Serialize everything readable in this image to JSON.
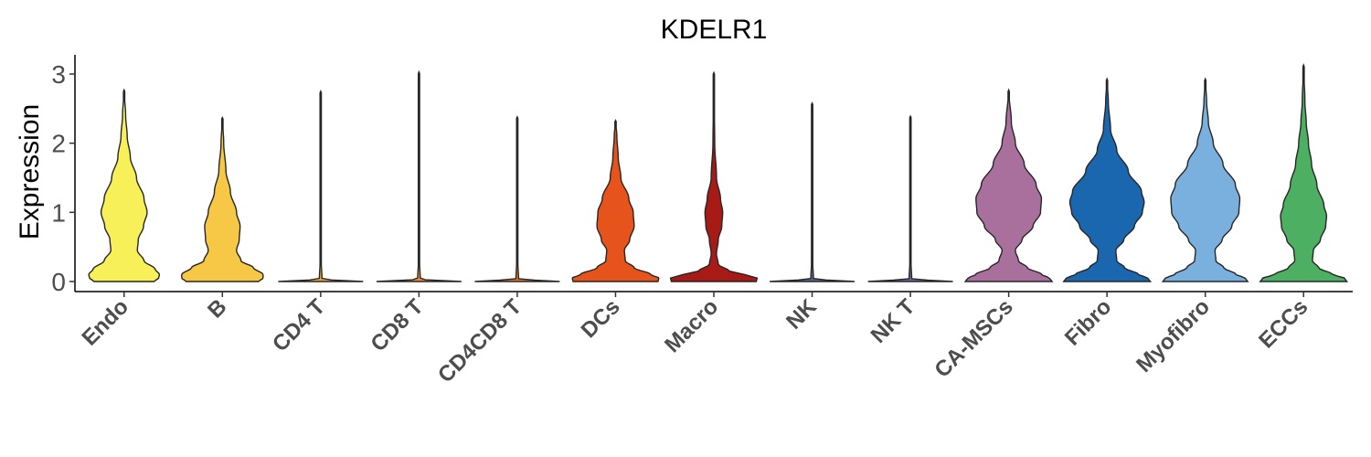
{
  "chart_data": {
    "type": "violin",
    "title": "KDELR1",
    "xlabel": "",
    "ylabel": "Expression",
    "ylim": [
      -0.15,
      3.3
    ],
    "yticks": [
      0,
      1,
      2,
      3
    ],
    "grid": false,
    "legend": "none",
    "categories": [
      "Endo",
      "B",
      "CD4 T",
      "CD8 T",
      "CD4CD8 T",
      "DCs",
      "Macro",
      "NK",
      "NK T",
      "CA-MSCs",
      "Fibro",
      "Myofibro",
      "ECCs"
    ],
    "series": [
      {
        "category": "Endo",
        "color": "#F8F058",
        "max": 2.77,
        "profile": [
          [
            0,
            0.68
          ],
          [
            0.05,
            0.78
          ],
          [
            0.1,
            0.8
          ],
          [
            0.18,
            0.7
          ],
          [
            0.3,
            0.45
          ],
          [
            0.45,
            0.3
          ],
          [
            0.6,
            0.32
          ],
          [
            0.8,
            0.44
          ],
          [
            1.0,
            0.52
          ],
          [
            1.2,
            0.45
          ],
          [
            1.5,
            0.28
          ],
          [
            1.8,
            0.14
          ],
          [
            2.1,
            0.07
          ],
          [
            2.4,
            0.035
          ],
          [
            2.77,
            0.0
          ]
        ]
      },
      {
        "category": "B",
        "color": "#F6C845",
        "max": 2.37,
        "profile": [
          [
            0,
            0.82
          ],
          [
            0.05,
            0.92
          ],
          [
            0.1,
            0.92
          ],
          [
            0.2,
            0.7
          ],
          [
            0.3,
            0.42
          ],
          [
            0.45,
            0.32
          ],
          [
            0.6,
            0.38
          ],
          [
            0.8,
            0.4
          ],
          [
            1.0,
            0.32
          ],
          [
            1.3,
            0.18
          ],
          [
            1.6,
            0.08
          ],
          [
            2.0,
            0.03
          ],
          [
            2.37,
            0.0
          ]
        ]
      },
      {
        "category": "CD4 T",
        "color": "#F0A842",
        "max": 2.75,
        "profile": [
          [
            0,
            0.96
          ],
          [
            0.015,
            0.5
          ],
          [
            0.03,
            0.03
          ],
          [
            0.3,
            0.012
          ],
          [
            1.0,
            0.008
          ],
          [
            2.0,
            0.006
          ],
          [
            2.75,
            0.0
          ]
        ]
      },
      {
        "category": "CD8 T",
        "color": "#F08C3A",
        "max": 3.03,
        "profile": [
          [
            0,
            0.96
          ],
          [
            0.015,
            0.5
          ],
          [
            0.03,
            0.03
          ],
          [
            0.3,
            0.012
          ],
          [
            1.0,
            0.008
          ],
          [
            2.0,
            0.006
          ],
          [
            3.03,
            0.0
          ]
        ]
      },
      {
        "category": "CD4CD8 T",
        "color": "#EE7A2E",
        "max": 2.38,
        "profile": [
          [
            0,
            0.96
          ],
          [
            0.015,
            0.5
          ],
          [
            0.03,
            0.03
          ],
          [
            0.3,
            0.012
          ],
          [
            1.0,
            0.008
          ],
          [
            2.0,
            0.006
          ],
          [
            2.38,
            0.0
          ]
        ]
      },
      {
        "category": "DCs",
        "color": "#E6541C",
        "max": 2.33,
        "profile": [
          [
            0,
            0.96
          ],
          [
            0.05,
            0.98
          ],
          [
            0.1,
            0.8
          ],
          [
            0.2,
            0.42
          ],
          [
            0.3,
            0.22
          ],
          [
            0.45,
            0.2
          ],
          [
            0.6,
            0.32
          ],
          [
            0.8,
            0.42
          ],
          [
            1.0,
            0.4
          ],
          [
            1.2,
            0.3
          ],
          [
            1.5,
            0.12
          ],
          [
            1.8,
            0.06
          ],
          [
            2.1,
            0.03
          ],
          [
            2.33,
            0.0
          ]
        ]
      },
      {
        "category": "Macro",
        "color": "#A81A16",
        "max": 3.02,
        "profile": [
          [
            0,
            0.96
          ],
          [
            0.05,
            0.98
          ],
          [
            0.1,
            0.7
          ],
          [
            0.15,
            0.35
          ],
          [
            0.25,
            0.1
          ],
          [
            0.4,
            0.06
          ],
          [
            0.6,
            0.1
          ],
          [
            0.8,
            0.18
          ],
          [
            1.0,
            0.2
          ],
          [
            1.2,
            0.15
          ],
          [
            1.5,
            0.06
          ],
          [
            2.0,
            0.02
          ],
          [
            2.5,
            0.012
          ],
          [
            3.02,
            0.0
          ]
        ]
      },
      {
        "category": "NK",
        "color": "#5A6B8C",
        "max": 2.58,
        "profile": [
          [
            0,
            0.96
          ],
          [
            0.015,
            0.5
          ],
          [
            0.03,
            0.03
          ],
          [
            0.3,
            0.012
          ],
          [
            1.0,
            0.008
          ],
          [
            2.0,
            0.006
          ],
          [
            2.58,
            0.0
          ]
        ]
      },
      {
        "category": "NK T",
        "color": "#6C6C9E",
        "max": 2.39,
        "profile": [
          [
            0,
            0.96
          ],
          [
            0.015,
            0.5
          ],
          [
            0.03,
            0.03
          ],
          [
            0.3,
            0.012
          ],
          [
            1.0,
            0.008
          ],
          [
            2.0,
            0.006
          ],
          [
            2.39,
            0.0
          ]
        ]
      },
      {
        "category": "CA-MSCs",
        "color": "#A9709E",
        "max": 2.77,
        "profile": [
          [
            0,
            0.98
          ],
          [
            0.05,
            0.92
          ],
          [
            0.1,
            0.75
          ],
          [
            0.2,
            0.42
          ],
          [
            0.3,
            0.22
          ],
          [
            0.45,
            0.15
          ],
          [
            0.6,
            0.3
          ],
          [
            0.8,
            0.55
          ],
          [
            1.0,
            0.72
          ],
          [
            1.2,
            0.74
          ],
          [
            1.4,
            0.62
          ],
          [
            1.7,
            0.35
          ],
          [
            2.0,
            0.15
          ],
          [
            2.3,
            0.06
          ],
          [
            2.77,
            0.0
          ]
        ]
      },
      {
        "category": "Fibro",
        "color": "#1B67AF",
        "max": 2.93,
        "profile": [
          [
            0,
            0.98
          ],
          [
            0.05,
            0.92
          ],
          [
            0.1,
            0.72
          ],
          [
            0.2,
            0.4
          ],
          [
            0.3,
            0.22
          ],
          [
            0.45,
            0.2
          ],
          [
            0.6,
            0.38
          ],
          [
            0.8,
            0.62
          ],
          [
            1.0,
            0.8
          ],
          [
            1.15,
            0.84
          ],
          [
            1.3,
            0.78
          ],
          [
            1.6,
            0.48
          ],
          [
            1.9,
            0.22
          ],
          [
            2.2,
            0.08
          ],
          [
            2.6,
            0.03
          ],
          [
            2.93,
            0.0
          ]
        ]
      },
      {
        "category": "Myofibro",
        "color": "#7AB0DE",
        "max": 2.93,
        "profile": [
          [
            0,
            0.96
          ],
          [
            0.05,
            0.9
          ],
          [
            0.1,
            0.7
          ],
          [
            0.2,
            0.42
          ],
          [
            0.3,
            0.24
          ],
          [
            0.45,
            0.22
          ],
          [
            0.6,
            0.38
          ],
          [
            0.8,
            0.6
          ],
          [
            1.0,
            0.76
          ],
          [
            1.2,
            0.78
          ],
          [
            1.4,
            0.68
          ],
          [
            1.7,
            0.4
          ],
          [
            2.0,
            0.18
          ],
          [
            2.3,
            0.07
          ],
          [
            2.6,
            0.03
          ],
          [
            2.93,
            0.0
          ]
        ]
      },
      {
        "category": "ECCs",
        "color": "#4DAF62",
        "max": 3.13,
        "profile": [
          [
            0,
            0.98
          ],
          [
            0.05,
            0.92
          ],
          [
            0.1,
            0.66
          ],
          [
            0.2,
            0.34
          ],
          [
            0.3,
            0.2
          ],
          [
            0.45,
            0.22
          ],
          [
            0.6,
            0.38
          ],
          [
            0.8,
            0.5
          ],
          [
            0.95,
            0.52
          ],
          [
            1.1,
            0.46
          ],
          [
            1.4,
            0.3
          ],
          [
            1.7,
            0.18
          ],
          [
            2.0,
            0.11
          ],
          [
            2.3,
            0.06
          ],
          [
            2.6,
            0.03
          ],
          [
            3.13,
            0.0
          ]
        ]
      }
    ]
  }
}
